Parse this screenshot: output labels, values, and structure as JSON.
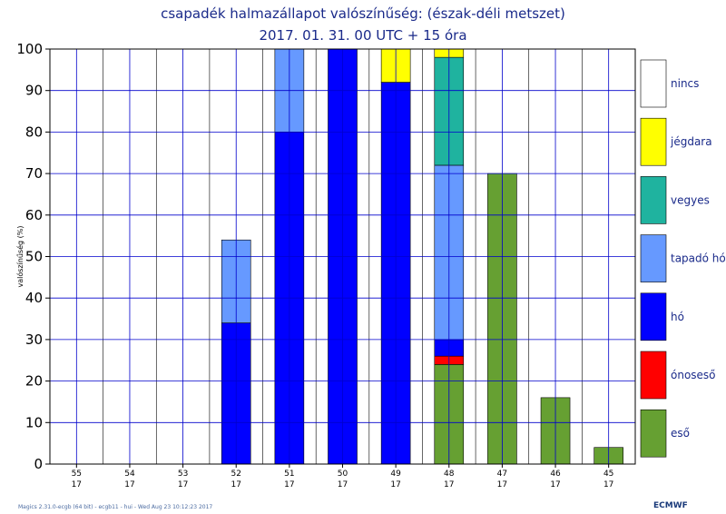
{
  "chart_data": {
    "type": "bar",
    "title": "csapadék halmazállapot valószínűség:  (észak-déli metszet)",
    "subtitle": "2017. 01. 31. 00 UTC + 15 óra",
    "ylabel": "valószínűség (%)",
    "ylim": [
      0,
      100
    ],
    "yticks": [
      0,
      10,
      20,
      30,
      40,
      50,
      60,
      70,
      80,
      90,
      100
    ],
    "grid": true,
    "legend_position": "right",
    "categories": [
      {
        "lat": "55",
        "lon": "17"
      },
      {
        "lat": "54",
        "lon": "17"
      },
      {
        "lat": "53",
        "lon": "17"
      },
      {
        "lat": "52",
        "lon": "17"
      },
      {
        "lat": "51",
        "lon": "17"
      },
      {
        "lat": "50",
        "lon": "17"
      },
      {
        "lat": "49",
        "lon": "17"
      },
      {
        "lat": "48",
        "lon": "17"
      },
      {
        "lat": "47",
        "lon": "17"
      },
      {
        "lat": "46",
        "lon": "17"
      },
      {
        "lat": "45",
        "lon": "17"
      }
    ],
    "stack_order": [
      "eső",
      "ónoseső",
      "hó",
      "tapadó hó",
      "vegyes",
      "jégdara"
    ],
    "series": [
      {
        "name": "eső",
        "color": "#66a032",
        "values": [
          0,
          0,
          0,
          0,
          0,
          0,
          0,
          24,
          70,
          16,
          4
        ]
      },
      {
        "name": "ónoseső",
        "color": "#ff0000",
        "values": [
          0,
          0,
          0,
          0,
          0,
          0,
          0,
          2,
          0,
          0,
          0
        ]
      },
      {
        "name": "hó",
        "color": "#0000ff",
        "values": [
          0,
          0,
          0,
          34,
          80,
          100,
          92,
          4,
          0,
          0,
          0
        ]
      },
      {
        "name": "tapadó hó",
        "color": "#6699ff",
        "values": [
          0,
          0,
          0,
          20,
          20,
          0,
          0,
          42,
          0,
          0,
          0
        ]
      },
      {
        "name": "vegyes",
        "color": "#1fb39f",
        "values": [
          0,
          0,
          0,
          0,
          0,
          0,
          0,
          26,
          0,
          0,
          0
        ]
      },
      {
        "name": "jégdara",
        "color": "#ffff00",
        "values": [
          0,
          0,
          0,
          0,
          0,
          0,
          8,
          2,
          0,
          0,
          0
        ]
      }
    ],
    "legend": [
      {
        "label": "nincs",
        "color": "#ffffff"
      },
      {
        "label": "jégdara",
        "color": "#ffff00"
      },
      {
        "label": "vegyes",
        "color": "#1fb39f"
      },
      {
        "label": "tapadó hó",
        "color": "#6699ff"
      },
      {
        "label": "hó",
        "color": "#0000ff"
      },
      {
        "label": "ónoseső",
        "color": "#ff0000"
      },
      {
        "label": "eső",
        "color": "#66a032"
      }
    ]
  },
  "footer": "Magics 2.31.0-ecgb (64 bit) - ecgb11 - hui - Wed Aug 23 10:12:23 2017",
  "logo": "ECMWF"
}
